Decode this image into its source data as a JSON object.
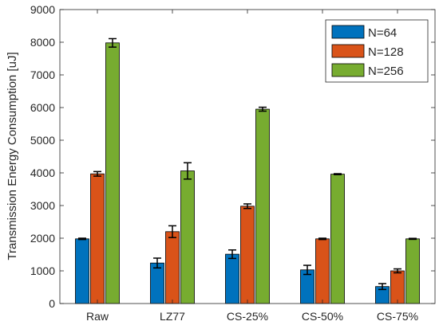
{
  "chart_data": {
    "type": "bar",
    "title": "",
    "xlabel": "",
    "ylabel": "Transmission Energy Consumption [uJ]",
    "categories": [
      "Raw",
      "LZ77",
      "CS-25%",
      "CS-50%",
      "CS-75%"
    ],
    "ylim": [
      0,
      9000
    ],
    "yticks": [
      0,
      1000,
      2000,
      3000,
      4000,
      5000,
      6000,
      7000,
      8000,
      9000
    ],
    "grid": false,
    "legend_position": "top-right",
    "series": [
      {
        "name": "N=64",
        "color": "#0072BD",
        "values": [
          1980,
          1240,
          1510,
          1030,
          520
        ],
        "errors": [
          20,
          150,
          130,
          140,
          90
        ]
      },
      {
        "name": "N=128",
        "color": "#D95319",
        "values": [
          3970,
          2200,
          2980,
          1980,
          1000
        ],
        "errors": [
          70,
          180,
          70,
          20,
          60
        ]
      },
      {
        "name": "N=256",
        "color": "#77AC30",
        "values": [
          7980,
          4060,
          5950,
          3960,
          1980
        ],
        "errors": [
          130,
          250,
          60,
          15,
          15
        ]
      }
    ]
  }
}
